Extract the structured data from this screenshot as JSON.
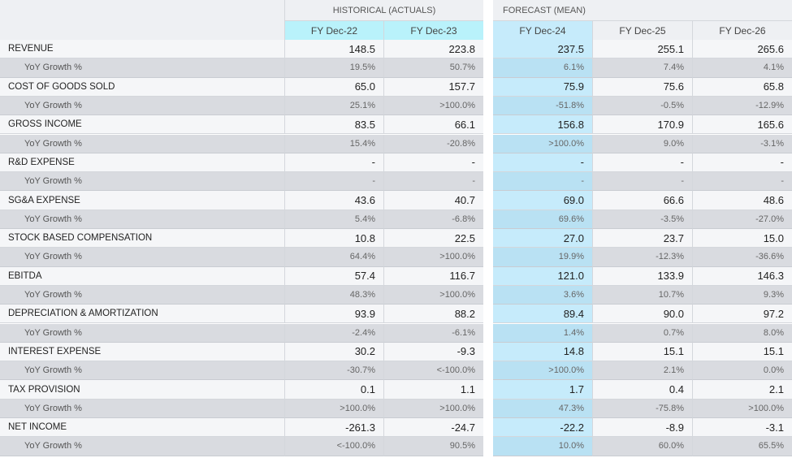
{
  "header": {
    "historical_label": "HISTORICAL (ACTUALS)",
    "forecast_label": "FORECAST (MEAN)",
    "columns": [
      "FY Dec-22",
      "FY Dec-23",
      "FY Dec-24",
      "FY Dec-25",
      "FY Dec-26"
    ]
  },
  "accent_colors": {
    "historical_header": "#b9f2fb",
    "current_forecast": "#c6ebfb",
    "subrow": "#d9dbe0"
  },
  "rows": [
    {
      "label": "REVENUE",
      "values": [
        "148.5",
        "223.8",
        "237.5",
        "255.1",
        "265.6"
      ]
    },
    {
      "label": "YoY Growth %",
      "values": [
        "19.5%",
        "50.7%",
        "6.1%",
        "7.4%",
        "4.1%"
      ]
    },
    {
      "label": "COST OF GOODS SOLD",
      "values": [
        "65.0",
        "157.7",
        "75.9",
        "75.6",
        "65.8"
      ]
    },
    {
      "label": "YoY Growth %",
      "values": [
        "25.1%",
        ">100.0%",
        "-51.8%",
        "-0.5%",
        "-12.9%"
      ]
    },
    {
      "label": "GROSS INCOME",
      "values": [
        "83.5",
        "66.1",
        "156.8",
        "170.9",
        "165.6"
      ]
    },
    {
      "label": "YoY Growth %",
      "values": [
        "15.4%",
        "-20.8%",
        ">100.0%",
        "9.0%",
        "-3.1%"
      ]
    },
    {
      "label": "R&D EXPENSE",
      "values": [
        "-",
        "-",
        "-",
        "-",
        "-"
      ]
    },
    {
      "label": "YoY Growth %",
      "values": [
        "-",
        "-",
        "-",
        "-",
        "-"
      ]
    },
    {
      "label": "SG&A EXPENSE",
      "values": [
        "43.6",
        "40.7",
        "69.0",
        "66.6",
        "48.6"
      ]
    },
    {
      "label": "YoY Growth %",
      "values": [
        "5.4%",
        "-6.8%",
        "69.6%",
        "-3.5%",
        "-27.0%"
      ]
    },
    {
      "label": "STOCK BASED COMPENSATION",
      "values": [
        "10.8",
        "22.5",
        "27.0",
        "23.7",
        "15.0"
      ]
    },
    {
      "label": "YoY Growth %",
      "values": [
        "64.4%",
        ">100.0%",
        "19.9%",
        "-12.3%",
        "-36.6%"
      ]
    },
    {
      "label": "EBITDA",
      "values": [
        "57.4",
        "116.7",
        "121.0",
        "133.9",
        "146.3"
      ]
    },
    {
      "label": "YoY Growth %",
      "values": [
        "48.3%",
        ">100.0%",
        "3.6%",
        "10.7%",
        "9.3%"
      ]
    },
    {
      "label": "DEPRECIATION & AMORTIZATION",
      "values": [
        "93.9",
        "88.2",
        "89.4",
        "90.0",
        "97.2"
      ]
    },
    {
      "label": "YoY Growth %",
      "values": [
        "-2.4%",
        "-6.1%",
        "1.4%",
        "0.7%",
        "8.0%"
      ]
    },
    {
      "label": "INTEREST EXPENSE",
      "values": [
        "30.2",
        "-9.3",
        "14.8",
        "15.1",
        "15.1"
      ]
    },
    {
      "label": "YoY Growth %",
      "values": [
        "-30.7%",
        "<-100.0%",
        ">100.0%",
        "2.1%",
        "0.0%"
      ]
    },
    {
      "label": "TAX PROVISION",
      "values": [
        "0.1",
        "1.1",
        "1.7",
        "0.4",
        "2.1"
      ]
    },
    {
      "label": "YoY Growth %",
      "values": [
        ">100.0%",
        ">100.0%",
        "47.3%",
        "-75.8%",
        ">100.0%"
      ]
    },
    {
      "label": "NET INCOME",
      "values": [
        "-261.3",
        "-24.7",
        "-22.2",
        "-8.9",
        "-3.1"
      ]
    },
    {
      "label": "YoY Growth %",
      "values": [
        "<-100.0%",
        "90.5%",
        "10.0%",
        "60.0%",
        "65.5%"
      ]
    }
  ]
}
